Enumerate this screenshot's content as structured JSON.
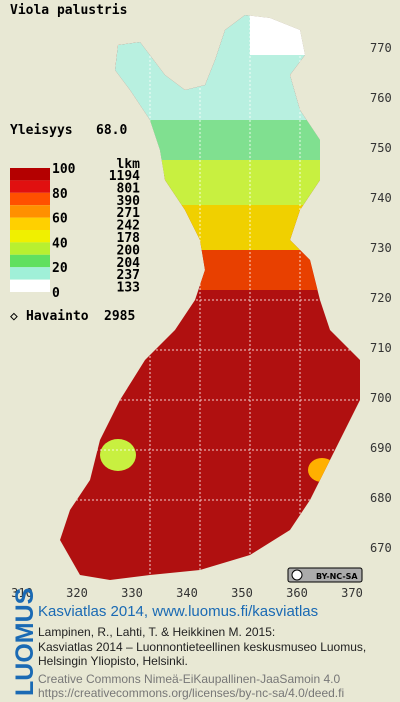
{
  "title": "Viola palustris",
  "frequency": {
    "label": "Yleisyys",
    "value": "68.0"
  },
  "legend": {
    "scale": [
      "100",
      "80",
      "60",
      "40",
      "20",
      "0"
    ],
    "count_header": "lkm",
    "counts": [
      "1194",
      "801",
      "390",
      "271",
      "242",
      "178",
      "200",
      "204",
      "237",
      "133"
    ],
    "colors": [
      "#b40000",
      "#e01010",
      "#ff5000",
      "#ff9000",
      "#ffd000",
      "#f0f000",
      "#b8f030",
      "#60e060",
      "#a0f0d8",
      "#ffffff"
    ]
  },
  "observations": {
    "label": "Havainto",
    "value": "2985"
  },
  "y_labels": [
    "770",
    "760",
    "750",
    "740",
    "730",
    "720",
    "710",
    "700",
    "690",
    "680",
    "670"
  ],
  "x_labels": [
    "310",
    "320",
    "330",
    "340",
    "350",
    "360",
    "370"
  ],
  "license_badge": "BY-NC-SA",
  "footer": {
    "logo": "LUOMUS",
    "link": "Kasviatlas 2014, www.luomus.fi/kasviatlas",
    "citation": [
      "Lampinen, R., Lahti, T. & Heikkinen M. 2015:",
      "Kasviatlas 2014 – Luonnontieteellinen keskusmuseo Luomus,",
      "Helsingin Yliopisto, Helsinki."
    ],
    "license": [
      "Creative Commons Nimeä-EiKaupallinen-JaaSamoin 4.0",
      "https://creativecommons.org/licenses/by-nc-sa/4.0/deed.fi"
    ]
  }
}
